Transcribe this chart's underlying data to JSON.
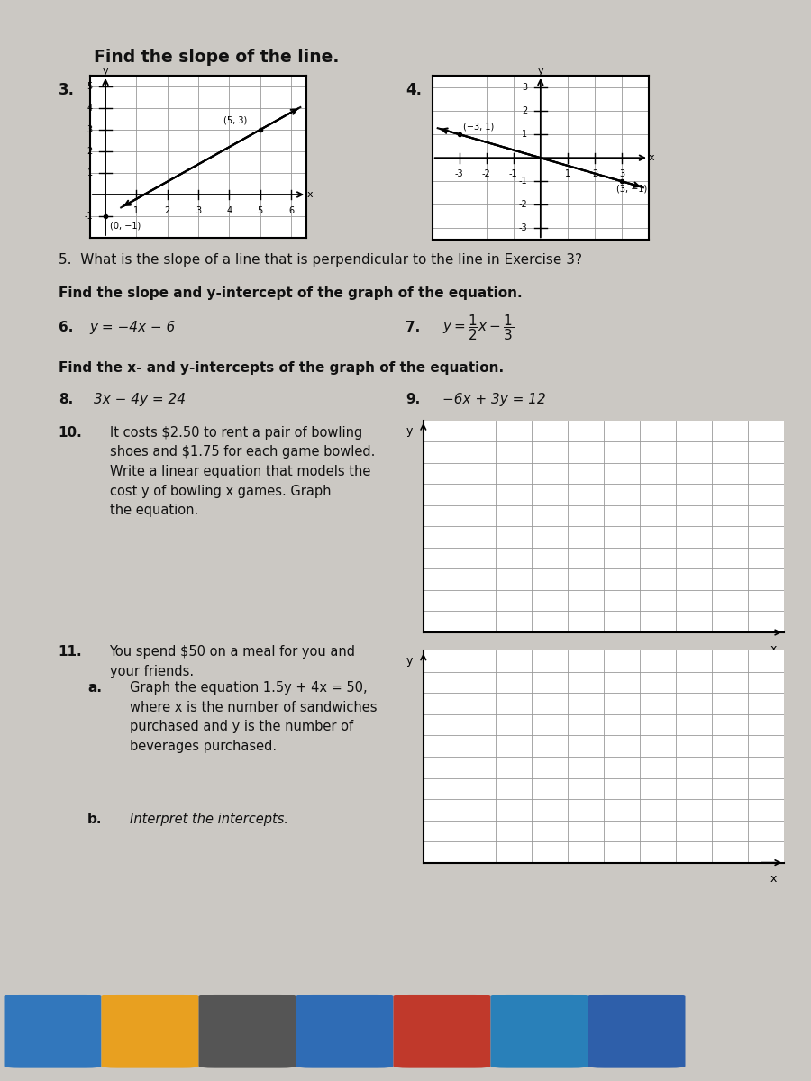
{
  "bg_color": "#cbc8c3",
  "text_color": "#111111",
  "title": "Find the slope of the line.",
  "q3_label": "3.",
  "q4_label": "4.",
  "q3_point1": [
    0,
    -1
  ],
  "q3_point2": [
    5,
    3
  ],
  "q3_point1_label": "(0, −1)",
  "q3_point2_label": "(5, 3)",
  "q4_point1": [
    -3,
    1
  ],
  "q4_point2": [
    3,
    -1
  ],
  "q4_point1_label": "(−3, 1)",
  "q4_point2_label": "(3, −1)",
  "q5_text": "5.  What is the slope of a line that is perpendicular to the line in Exercise 3?",
  "section2_title": "Find the slope and y-intercept of the graph of the equation.",
  "q6_label": "6.",
  "q6_eq": "y = −4x − 6",
  "q7_label": "7.",
  "section3_title": "Find the x- and y-intercepts of the graph of the equation.",
  "q8_label": "8.",
  "q8_eq": "3x − 4y = 24",
  "q9_label": "9.",
  "q9_eq": "−6x + 3y = 12",
  "q10_label": "10.",
  "q10_text": "It costs $2.50 to rent a pair of bowling\nshoes and $1.75 for each game bowled.\nWrite a linear equation that models the\ncost y of bowling x games. Graph\nthe equation.",
  "q11_label": "11.",
  "q11_text": "You spend $50 on a meal for you and\nyour friends.",
  "q11a_label": "a.",
  "q11a_text": "Graph the equation 1.5y + 4x = 50,\nwhere x is the number of sandwiches\npurchased and y is the number of\nbeverages purchased.",
  "q11b_label": "b.",
  "q11b_text": "Interpret the intercepts.",
  "grid_color": "#999999",
  "grid_bg": "#ffffff",
  "line_color": "#111111"
}
